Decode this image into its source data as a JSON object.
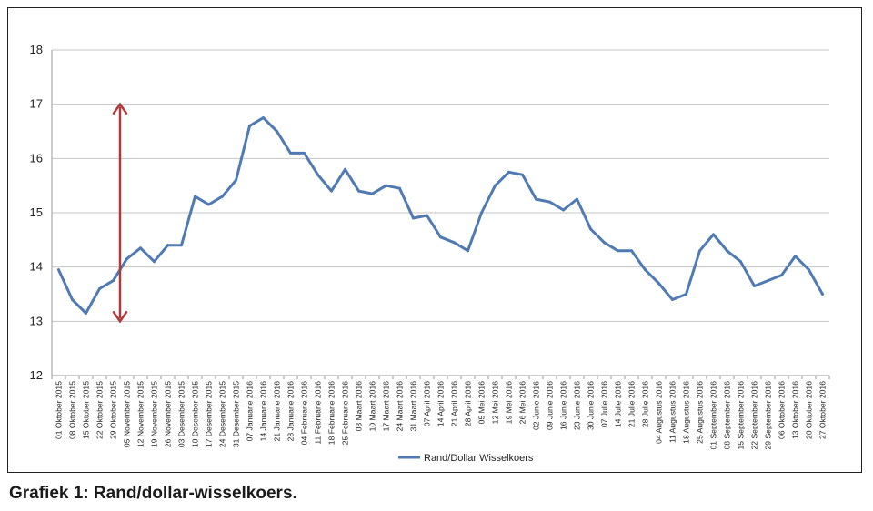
{
  "caption": "Grafiek 1: Rand/dollar-wisselkoers.",
  "chart_data": {
    "type": "line",
    "title": "",
    "xlabel": "",
    "ylabel": "",
    "ylim": [
      12,
      18
    ],
    "yticks": [
      12,
      13,
      14,
      15,
      16,
      17,
      18
    ],
    "grid": "horizontal",
    "legend_position": "bottom",
    "line_color": "#4f7ab4",
    "annotation_color": "#b03a3a",
    "annotation": {
      "type": "double-arrow",
      "at": "05 November 2015",
      "from": 13,
      "to": 17
    },
    "x_tick_labels": [
      "01 Oktober 2015",
      "08 Oktober 2015",
      "15 Oktober 2015",
      "22 Oktober 2015",
      "29 Oktober 2015",
      "05 November 2015",
      "12 November 2015",
      "19 November 2015",
      "26 November 2015",
      "03 Desember 2015",
      "10 Desember 2015",
      "17 Desember 2015",
      "24 Desember 2015",
      "31 Desember 2015",
      "07 Januarie 2016",
      "14 Januarie 2016",
      "21 Januarie 2016",
      "28 Januarie 2016",
      "04 Februarie 2016",
      "11 Februarie 2016",
      "18 Februarie 2016",
      "25 Februarie 2016",
      "03 Maart 2016",
      "10 Maart 2016",
      "17 Maart 2016",
      "24 Maart 2016",
      "31 Maart 2016",
      "07 April 2016",
      "14 April 2016",
      "21 April 2016",
      "28 April 2016",
      "05 Mei 2016",
      "12 Mei 2016",
      "19 Mei 2016",
      "26 Mei 2016",
      "02 Junie 2016",
      "09 Junie 2016",
      "16 Junie 2016",
      "23 Junie 2016",
      "30 Junie 2016",
      "07 Julie 2016",
      "14 Julie 2016",
      "21 Julie 2016",
      "28 Julie 2016",
      "04 Augustus 2016",
      "11 Augustus 2016",
      "18 Augustus 2016",
      "25 Augustus 2016",
      "01 September 2016",
      "08 September 2016",
      "15 September 2016",
      "22 September 2016",
      "29 September 2016",
      "06 Oktober 2016",
      "13 Oktober 2016",
      "20 Oktober 2016",
      "27 Oktober 2016"
    ],
    "series": [
      {
        "name": "Rand/Dollar Wisselkoers",
        "points": [
          [
            "01 Oktober 2015",
            13.95
          ],
          [
            "08 Oktober 2015",
            13.4
          ],
          [
            "15 Oktober 2015",
            13.15
          ],
          [
            "22 Oktober 2015",
            13.6
          ],
          [
            "29 Oktober 2015",
            13.75
          ],
          [
            "05 November 2015",
            14.15
          ],
          [
            "12 November 2015",
            14.35
          ],
          [
            "19 November 2015",
            14.1
          ],
          [
            "26 November 2015",
            14.4
          ],
          [
            "03 Desember 2015",
            14.4
          ],
          [
            "10 Desember 2015",
            15.3
          ],
          [
            "17 Desember 2015",
            15.15
          ],
          [
            "24 Desember 2015",
            15.3
          ],
          [
            "31 Desember 2015",
            15.6
          ],
          [
            "07 Januarie 2016",
            16.6
          ],
          [
            "14 Januarie 2016",
            16.75
          ],
          [
            "21 Januarie 2016",
            16.5
          ],
          [
            "28 Januarie 2016",
            16.1
          ],
          [
            "04 Februarie 2016",
            16.1
          ],
          [
            "11 Februarie 2016",
            15.7
          ],
          [
            "18 Februarie 2016",
            15.4
          ],
          [
            "25 Februarie 2016",
            15.8
          ],
          [
            "03 Maart 2016",
            15.4
          ],
          [
            "10 Maart 2016",
            15.35
          ],
          [
            "17 Maart 2016",
            15.5
          ],
          [
            "24 Maart 2016",
            15.45
          ],
          [
            "31 Maart 2016",
            14.9
          ],
          [
            "07 April 2016",
            14.95
          ],
          [
            "14 April 2016",
            14.55
          ],
          [
            "21 April 2016",
            14.45
          ],
          [
            "28 April 2016",
            14.3
          ],
          [
            "05 Mei 2016",
            15.0
          ],
          [
            "12 Mei 2016",
            15.5
          ],
          [
            "19 Mei 2016",
            15.75
          ],
          [
            "26 Mei 2016",
            15.7
          ],
          [
            "02 Junie 2016",
            15.25
          ],
          [
            "09 Junie 2016",
            15.2
          ],
          [
            "16 Junie 2016",
            15.05
          ],
          [
            "23 Junie 2016",
            15.25
          ],
          [
            "30 Junie 2016",
            14.7
          ],
          [
            "07 Julie 2016",
            14.45
          ],
          [
            "14 Julie 2016",
            14.3
          ],
          [
            "21 Julie 2016",
            14.3
          ],
          [
            "28 Julie 2016",
            13.95
          ],
          [
            "04 Augustus 2016",
            13.7
          ],
          [
            "11 Augustus 2016",
            13.4
          ],
          [
            "18 Augustus 2016",
            13.5
          ],
          [
            "25 Augustus 2016",
            14.3
          ],
          [
            "01 September 2016",
            14.6
          ],
          [
            "08 September 2016",
            14.3
          ],
          [
            "15 September 2016",
            14.1
          ],
          [
            "22 September 2016",
            13.65
          ],
          [
            "29 September 2016",
            13.75
          ],
          [
            "06 Oktober 2016",
            13.85
          ],
          [
            "13 Oktober 2016",
            14.2
          ],
          [
            "20 Oktober 2016",
            13.95
          ],
          [
            "27 Oktober 2016",
            13.5
          ]
        ]
      }
    ]
  }
}
